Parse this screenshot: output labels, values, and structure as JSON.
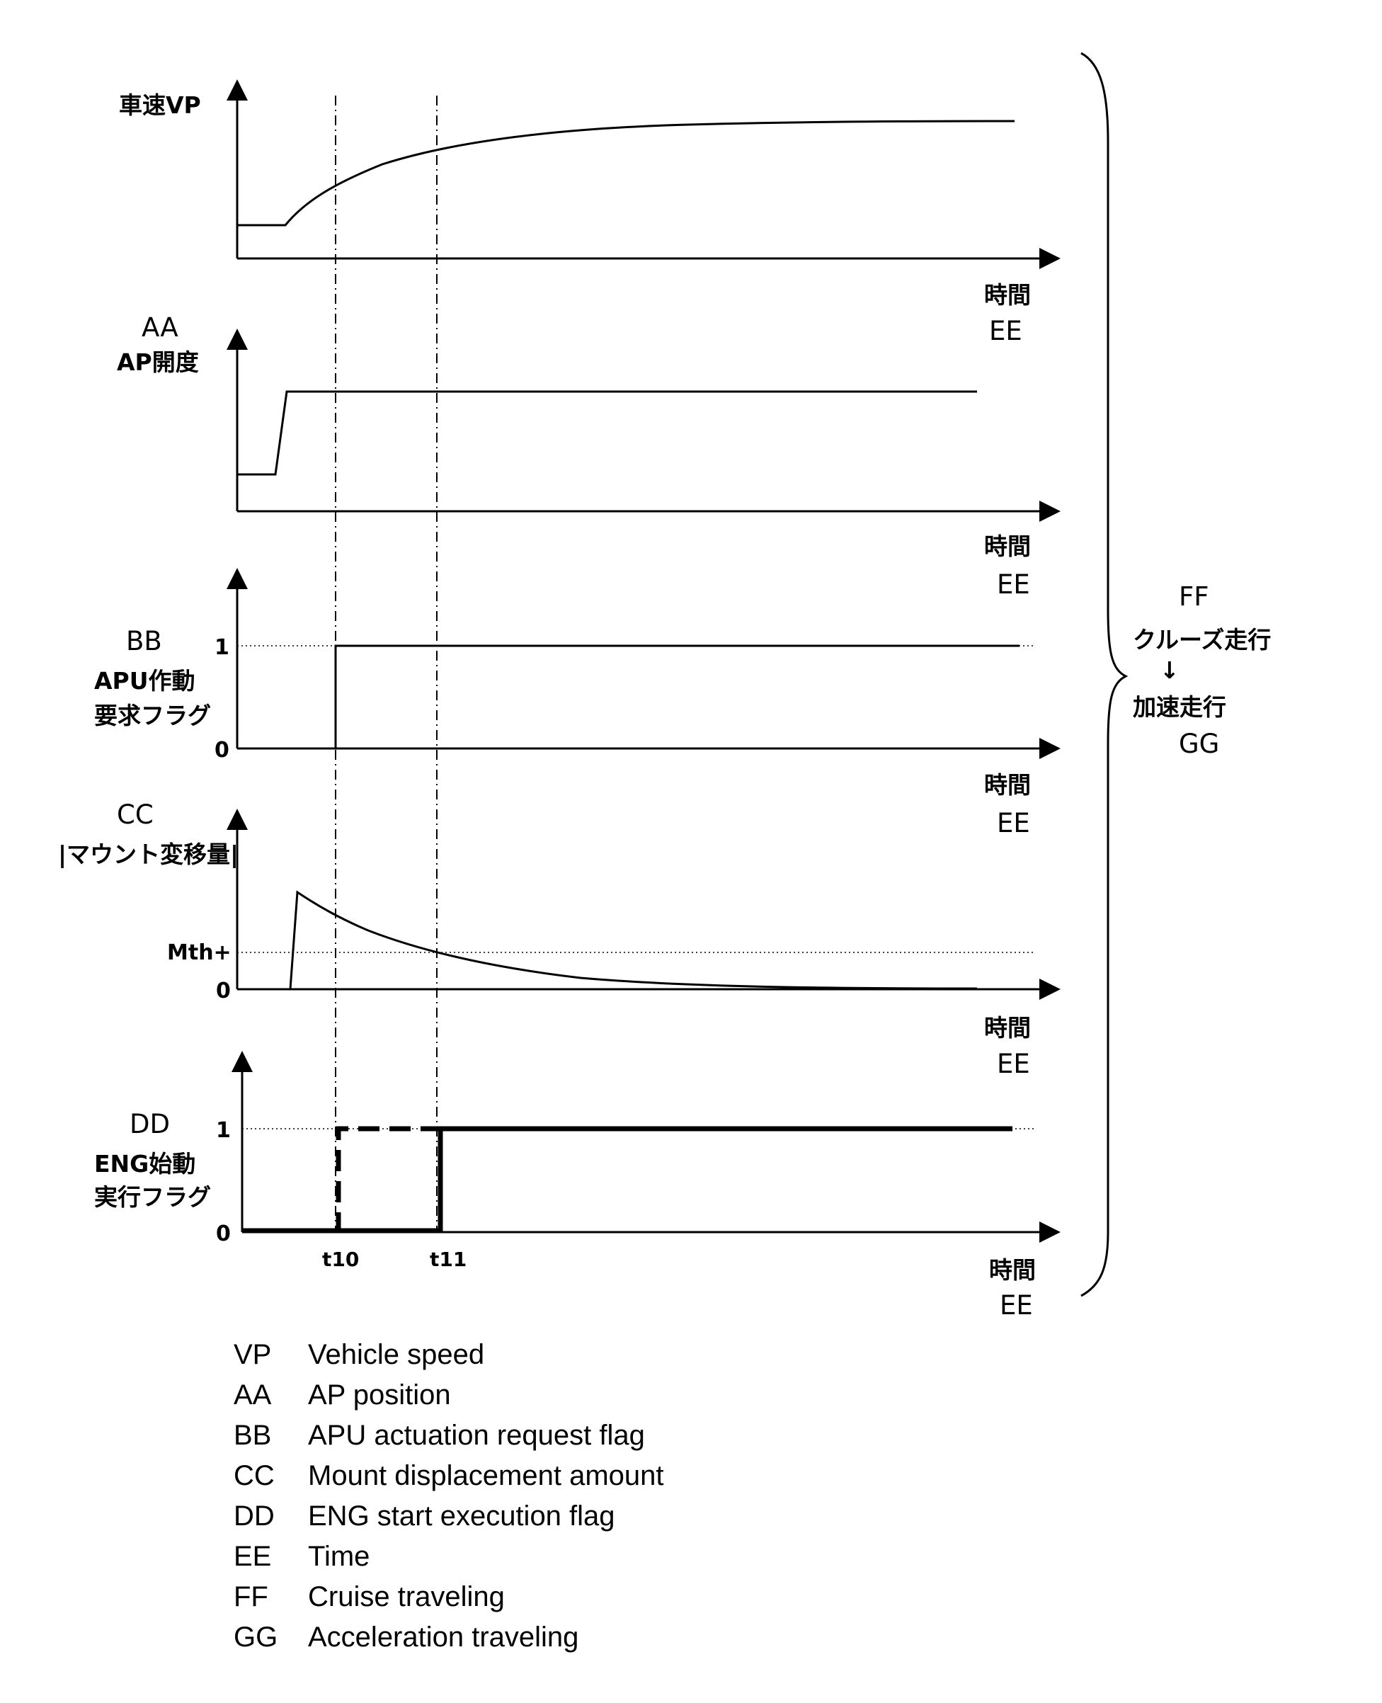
{
  "panels": {
    "vp": {
      "label_jp": "車速VP",
      "time_label_jp": "時間",
      "time_label_code": "EE"
    },
    "ap": {
      "label_code": "AA",
      "label_jp": "AP開度",
      "time_label_jp": "時間",
      "time_label_code": "EE"
    },
    "apu": {
      "label_code": "BB",
      "label_jp_line1": "APU作動",
      "label_jp_line2": "要求フラグ",
      "tick_one": "1",
      "tick_zero": "0",
      "time_label_jp": "時間",
      "time_label_code": "EE"
    },
    "mount": {
      "label_code": "CC",
      "label_jp": "|マウント変移量|",
      "threshold_label": "Mth+",
      "tick_zero": "0",
      "time_label_jp": "時間",
      "time_label_code": "EE"
    },
    "eng": {
      "label_code": "DD",
      "label_jp_line1": "ENG始動",
      "label_jp_line2": "実行フラグ",
      "tick_one": "1",
      "tick_zero": "0",
      "time_label_jp": "時間",
      "time_label_code": "EE"
    }
  },
  "time_markers": {
    "t10": "t10",
    "t11": "t11"
  },
  "phase": {
    "code_top": "FF",
    "from_jp": "クルーズ走行",
    "arrow": "↓",
    "to_jp": "加速走行",
    "code_bottom": "GG"
  },
  "legend": [
    {
      "code": "VP",
      "text": "Vehicle speed"
    },
    {
      "code": "AA",
      "text": "AP position"
    },
    {
      "code": "BB",
      "text": "APU actuation request flag"
    },
    {
      "code": "CC",
      "text": "Mount displacement amount"
    },
    {
      "code": "DD",
      "text": "ENG start execution flag"
    },
    {
      "code": "EE",
      "text": "Time"
    },
    {
      "code": "FF",
      "text": "Cruise traveling"
    },
    {
      "code": "GG",
      "text": "Acceleration traveling"
    }
  ]
}
